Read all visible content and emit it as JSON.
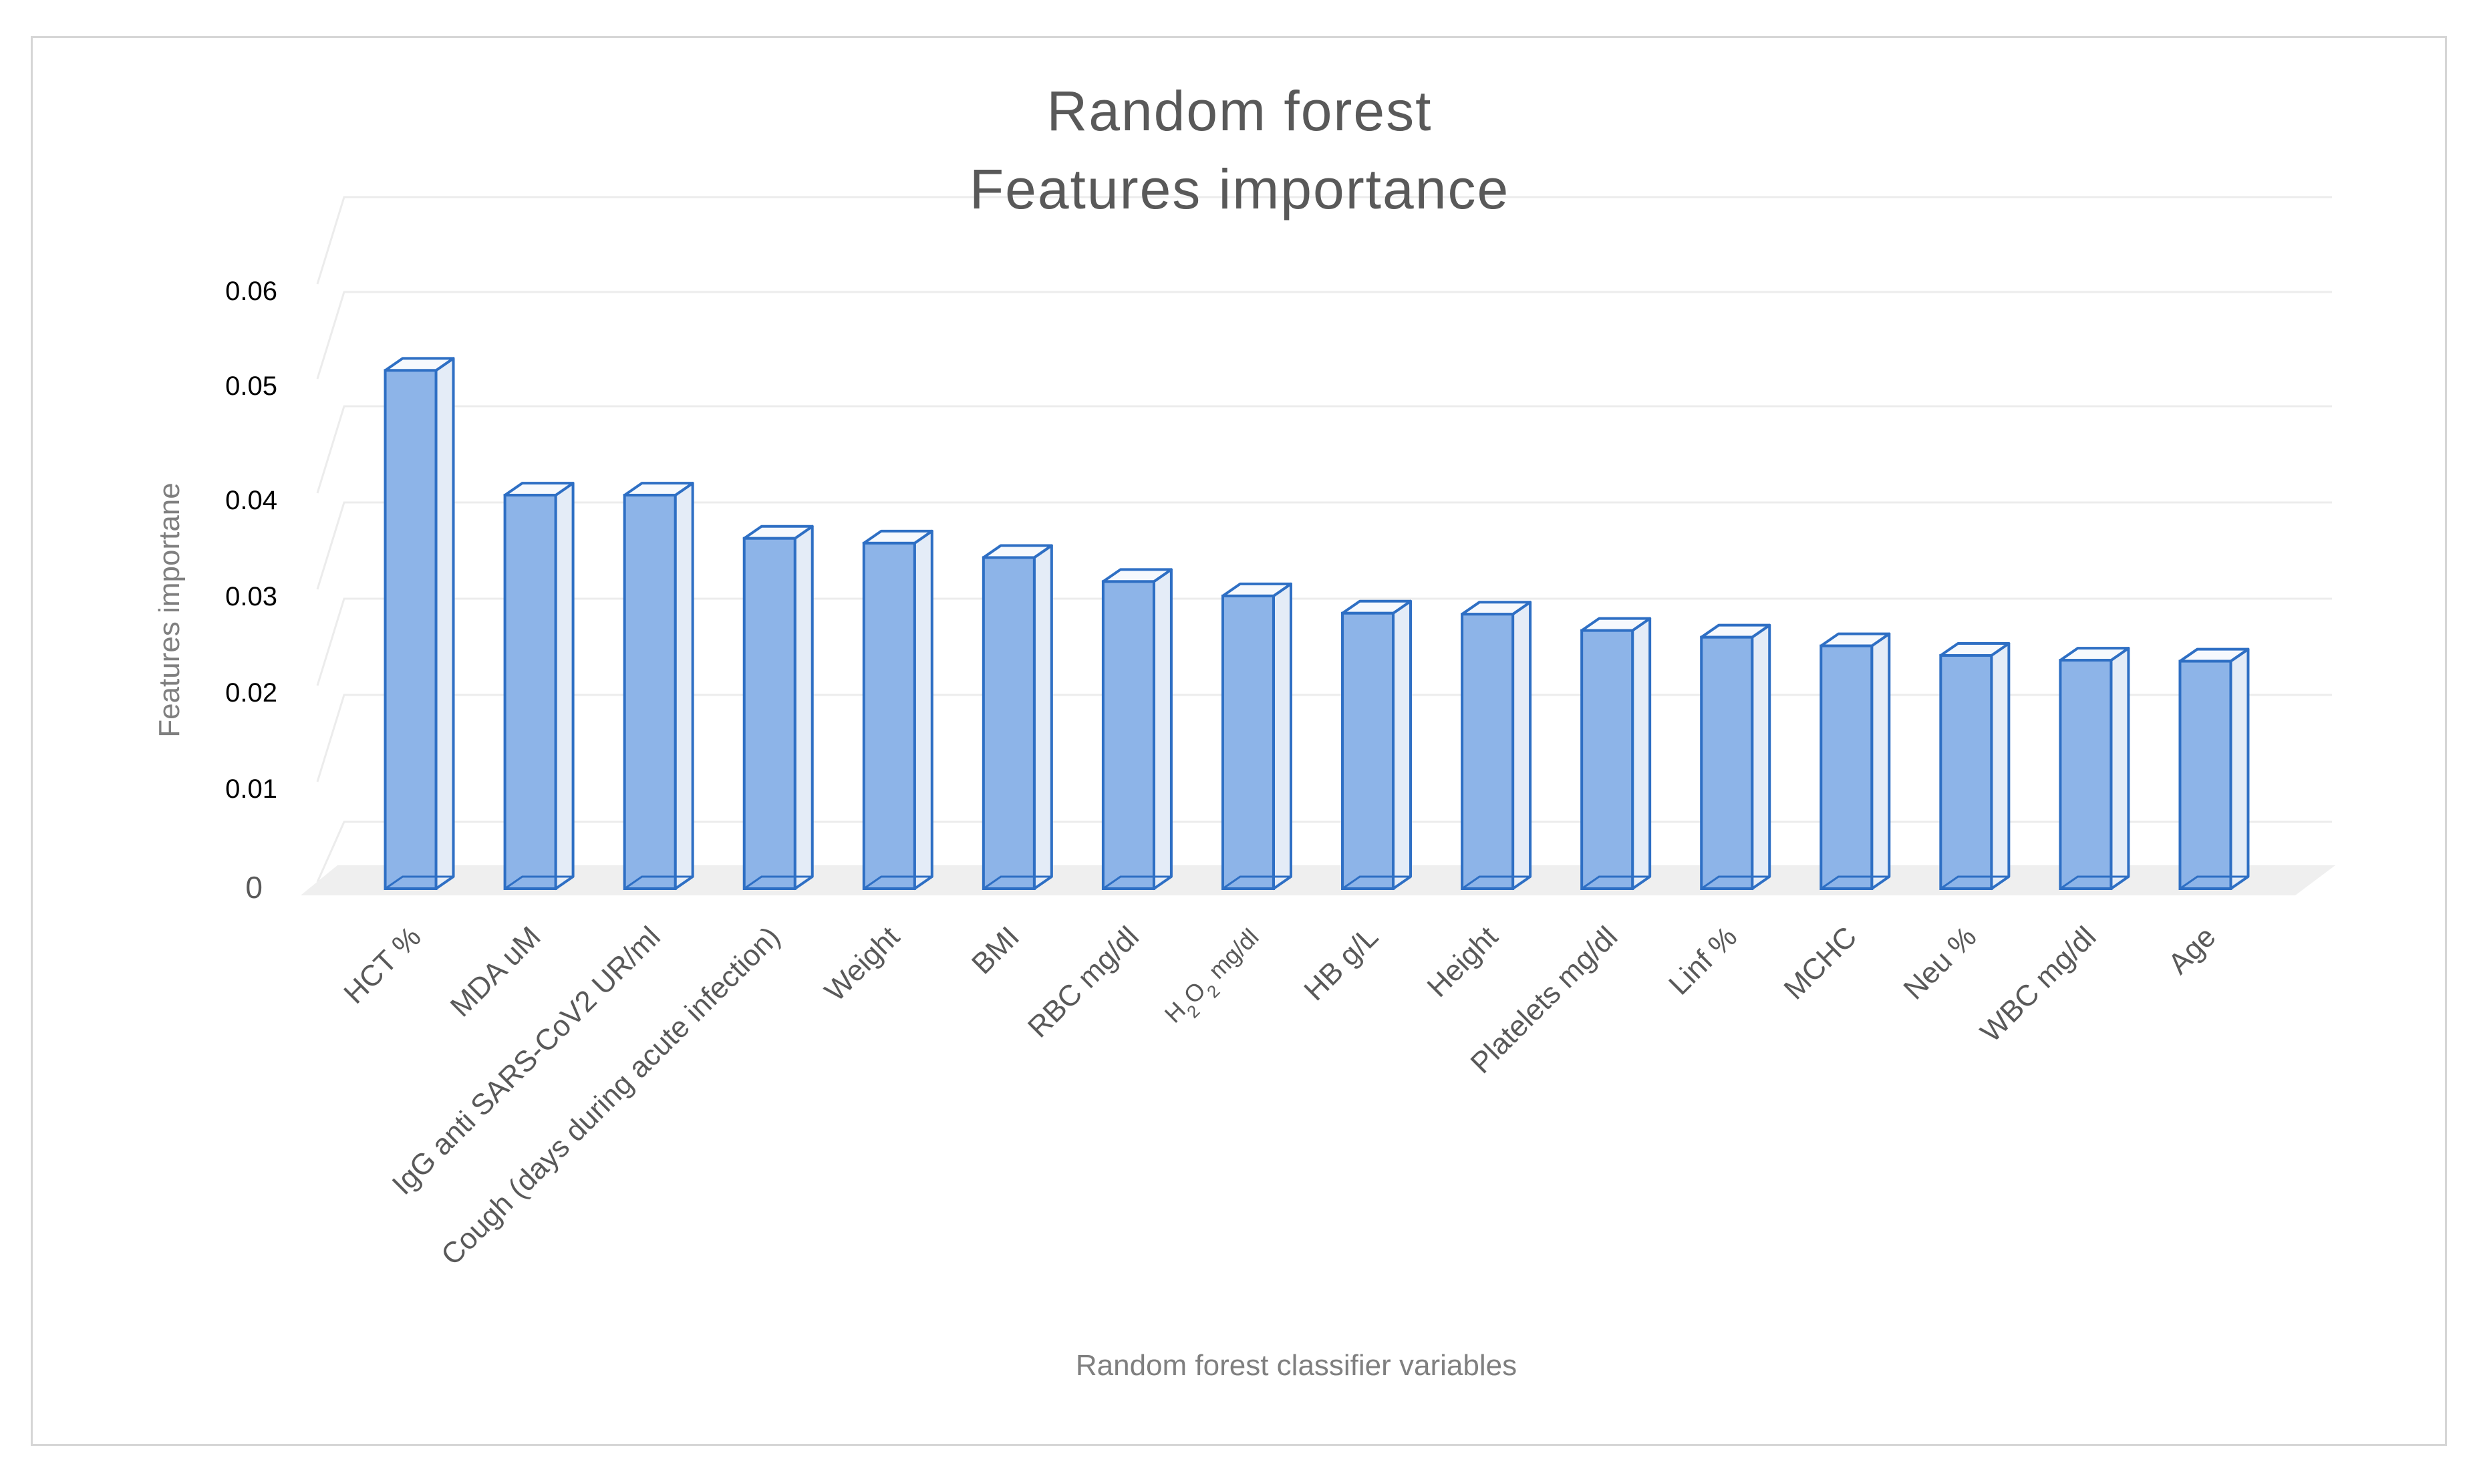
{
  "chart_data": {
    "type": "bar",
    "title": [
      "Random forest",
      "Features importance"
    ],
    "xlabel": "Random forest classifier variables",
    "ylabel": "Features importane",
    "ylim": [
      0,
      0.06
    ],
    "yticks": [
      "0",
      "0.01",
      "0.02",
      "0.03",
      "0.04",
      "0.05",
      "0.06"
    ],
    "grid": true,
    "legend": "none",
    "style": "3d-column",
    "categories": [
      "HCT %",
      "MDA uM",
      "IgG anti SARS-CoV2 UR/ml",
      "Cough (days during acute infection)",
      "Weight",
      "BMI",
      "RBC mg/dl",
      "H2O2 mg/dl",
      "HB g/L",
      "Height",
      "Platelets mg/dl",
      "Linf %",
      "MCHC",
      "Neu %",
      "WBC mg/dl",
      "Age"
    ],
    "values": [
      0.054,
      0.041,
      0.041,
      0.0365,
      0.036,
      0.0345,
      0.032,
      0.0305,
      0.0287,
      0.0286,
      0.0269,
      0.0262,
      0.0253,
      0.0243,
      0.0238,
      0.0237
    ],
    "colors": {
      "front": "#8db4e8",
      "side": "#e4ecf7",
      "top": "#f6f9fd",
      "edge": "#2e6fc4",
      "grid": "#ececec",
      "floor": "#efefef"
    }
  }
}
